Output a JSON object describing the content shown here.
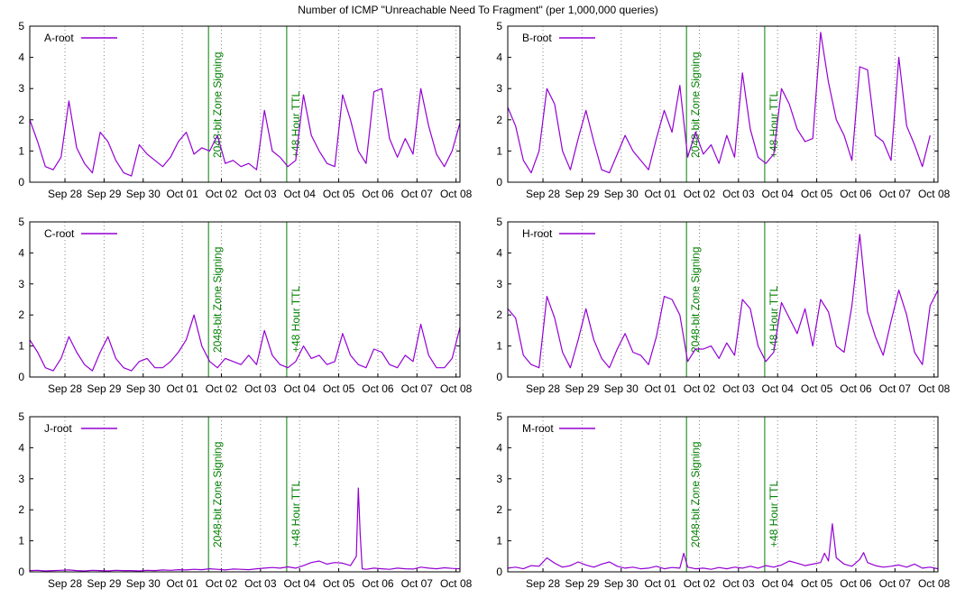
{
  "title": "Number of ICMP \"Unreachable Need To Fragment\" (per 1,000,000 queries)",
  "colors": {
    "series": "#9400d3",
    "event": "#008000",
    "grid": "#888888"
  },
  "chart_data": {
    "type": "line",
    "x_range": [
      27.1,
      38.1
    ],
    "ylim": [
      0,
      5
    ],
    "y_ticks": [
      0,
      1,
      2,
      3,
      4,
      5
    ],
    "x_tick_positions": [
      28,
      29,
      30,
      31,
      32,
      33,
      34,
      35,
      36,
      37,
      38
    ],
    "x_tick_labels": [
      "Sep 28",
      "Sep 29",
      "Sep 30",
      "Oct 01",
      "Oct 02",
      "Oct 03",
      "Oct 04",
      "Oct 05",
      "Oct 06",
      "Oct 07",
      "Oct 08"
    ],
    "events": [
      {
        "label": "2048-bit Zone Signing",
        "x": 31.67
      },
      {
        "label": "+48 Hour TTL",
        "x": 33.67
      }
    ],
    "legend_position": "top-left",
    "panels": [
      {
        "name": "A-root",
        "x": [
          27.1,
          27.3,
          27.5,
          27.7,
          27.9,
          28.1,
          28.3,
          28.5,
          28.7,
          28.9,
          29.1,
          29.3,
          29.5,
          29.7,
          29.9,
          30.1,
          30.3,
          30.5,
          30.7,
          30.9,
          31.1,
          31.3,
          31.5,
          31.7,
          31.9,
          32.1,
          32.3,
          32.5,
          32.7,
          32.9,
          33.1,
          33.3,
          33.5,
          33.7,
          33.9,
          34.1,
          34.3,
          34.5,
          34.7,
          34.9,
          35.1,
          35.3,
          35.5,
          35.7,
          35.9,
          36.1,
          36.3,
          36.5,
          36.7,
          36.9,
          37.1,
          37.3,
          37.5,
          37.7,
          37.9,
          38.1
        ],
        "y": [
          2.0,
          1.3,
          0.5,
          0.4,
          0.8,
          2.6,
          1.1,
          0.6,
          0.3,
          1.6,
          1.3,
          0.7,
          0.3,
          0.2,
          1.2,
          0.9,
          0.7,
          0.5,
          0.8,
          1.3,
          1.6,
          0.9,
          1.1,
          1.0,
          1.5,
          0.6,
          0.7,
          0.5,
          0.6,
          0.4,
          2.3,
          1.0,
          0.8,
          0.5,
          0.7,
          2.8,
          1.5,
          1.0,
          0.6,
          0.5,
          2.8,
          2.0,
          1.0,
          0.6,
          2.9,
          3.0,
          1.4,
          0.8,
          1.4,
          0.9,
          3.0,
          1.8,
          0.9,
          0.5,
          1.0,
          1.9
        ]
      },
      {
        "name": "B-root",
        "x": [
          27.1,
          27.3,
          27.5,
          27.7,
          27.9,
          28.1,
          28.3,
          28.5,
          28.7,
          28.9,
          29.1,
          29.3,
          29.5,
          29.7,
          29.9,
          30.1,
          30.3,
          30.5,
          30.7,
          30.9,
          31.1,
          31.3,
          31.5,
          31.7,
          31.9,
          32.1,
          32.3,
          32.5,
          32.7,
          32.9,
          33.1,
          33.3,
          33.5,
          33.7,
          33.9,
          34.1,
          34.3,
          34.5,
          34.7,
          34.9,
          35.1,
          35.3,
          35.5,
          35.7,
          35.9,
          36.1,
          36.3,
          36.5,
          36.7,
          36.9,
          37.1,
          37.3,
          37.5,
          37.7,
          37.9
        ],
        "y": [
          2.4,
          1.8,
          0.7,
          0.3,
          1.0,
          3.0,
          2.5,
          1.0,
          0.4,
          1.4,
          2.3,
          1.3,
          0.4,
          0.3,
          0.9,
          1.5,
          1.0,
          0.7,
          0.4,
          1.4,
          2.3,
          1.6,
          3.1,
          0.8,
          1.6,
          0.9,
          1.2,
          0.6,
          1.5,
          0.8,
          3.5,
          1.7,
          0.8,
          0.6,
          0.9,
          3.0,
          2.5,
          1.7,
          1.3,
          1.4,
          4.8,
          3.2,
          2.0,
          1.5,
          0.7,
          3.7,
          3.6,
          1.5,
          1.3,
          0.7,
          4.0,
          1.8,
          1.2,
          0.5,
          1.5
        ]
      },
      {
        "name": "C-root",
        "x": [
          27.1,
          27.3,
          27.5,
          27.7,
          27.9,
          28.1,
          28.3,
          28.5,
          28.7,
          28.9,
          29.1,
          29.3,
          29.5,
          29.7,
          29.9,
          30.1,
          30.3,
          30.5,
          30.7,
          30.9,
          31.1,
          31.3,
          31.5,
          31.7,
          31.9,
          32.1,
          32.3,
          32.5,
          32.7,
          32.9,
          33.1,
          33.3,
          33.5,
          33.7,
          33.9,
          34.1,
          34.3,
          34.5,
          34.7,
          34.9,
          35.1,
          35.3,
          35.5,
          35.7,
          35.9,
          36.1,
          36.3,
          36.5,
          36.7,
          36.9,
          37.1,
          37.3,
          37.5,
          37.7,
          37.9,
          38.1
        ],
        "y": [
          1.2,
          0.8,
          0.3,
          0.2,
          0.6,
          1.3,
          0.8,
          0.4,
          0.2,
          0.8,
          1.3,
          0.6,
          0.3,
          0.2,
          0.5,
          0.6,
          0.3,
          0.3,
          0.5,
          0.8,
          1.2,
          2.0,
          1.0,
          0.5,
          0.3,
          0.6,
          0.5,
          0.4,
          0.7,
          0.4,
          1.5,
          0.7,
          0.4,
          0.3,
          0.5,
          1.0,
          0.6,
          0.7,
          0.4,
          0.5,
          1.4,
          0.7,
          0.4,
          0.3,
          0.9,
          0.8,
          0.4,
          0.3,
          0.7,
          0.5,
          1.7,
          0.7,
          0.3,
          0.3,
          0.6,
          1.6
        ]
      },
      {
        "name": "H-root",
        "x": [
          27.1,
          27.3,
          27.5,
          27.7,
          27.9,
          28.1,
          28.3,
          28.5,
          28.7,
          28.9,
          29.1,
          29.3,
          29.5,
          29.7,
          29.9,
          30.1,
          30.3,
          30.5,
          30.7,
          30.9,
          31.1,
          31.3,
          31.5,
          31.7,
          31.9,
          32.1,
          32.3,
          32.5,
          32.7,
          32.9,
          33.1,
          33.3,
          33.5,
          33.7,
          33.9,
          34.1,
          34.3,
          34.5,
          34.7,
          34.9,
          35.1,
          35.3,
          35.5,
          35.7,
          35.9,
          36.1,
          36.3,
          36.5,
          36.7,
          36.9,
          37.1,
          37.3,
          37.5,
          37.7,
          37.9,
          38.1
        ],
        "y": [
          2.2,
          1.9,
          0.7,
          0.4,
          0.3,
          2.6,
          1.9,
          0.8,
          0.3,
          1.2,
          2.2,
          1.2,
          0.6,
          0.3,
          0.9,
          1.4,
          0.8,
          0.7,
          0.4,
          1.3,
          2.6,
          2.5,
          2.0,
          0.5,
          0.9,
          0.9,
          1.0,
          0.6,
          1.1,
          0.7,
          2.5,
          2.2,
          1.0,
          0.5,
          0.8,
          2.4,
          1.9,
          1.4,
          2.2,
          1.0,
          2.5,
          2.1,
          1.0,
          0.8,
          2.3,
          4.6,
          2.1,
          1.3,
          0.7,
          1.8,
          2.8,
          2.0,
          0.8,
          0.4,
          2.3,
          2.8
        ]
      },
      {
        "name": "J-root",
        "x": [
          27.1,
          27.3,
          27.5,
          27.7,
          27.9,
          28.1,
          28.3,
          28.5,
          28.7,
          28.9,
          29.1,
          29.3,
          29.5,
          29.7,
          29.9,
          30.1,
          30.3,
          30.5,
          30.7,
          30.9,
          31.1,
          31.3,
          31.5,
          31.7,
          31.9,
          32.1,
          32.3,
          32.5,
          32.7,
          32.9,
          33.1,
          33.3,
          33.5,
          33.7,
          33.9,
          34.1,
          34.3,
          34.5,
          34.7,
          34.9,
          35.1,
          35.3,
          35.45,
          35.5,
          35.55,
          35.6,
          35.7,
          35.9,
          36.1,
          36.3,
          36.5,
          36.7,
          36.9,
          37.1,
          37.3,
          37.5,
          37.7,
          37.9,
          38.1
        ],
        "y": [
          0.04,
          0.05,
          0.03,
          0.04,
          0.05,
          0.06,
          0.04,
          0.03,
          0.05,
          0.04,
          0.03,
          0.05,
          0.04,
          0.04,
          0.03,
          0.05,
          0.04,
          0.06,
          0.05,
          0.07,
          0.06,
          0.08,
          0.07,
          0.1,
          0.08,
          0.06,
          0.09,
          0.08,
          0.07,
          0.1,
          0.12,
          0.14,
          0.12,
          0.16,
          0.12,
          0.2,
          0.3,
          0.35,
          0.25,
          0.3,
          0.28,
          0.2,
          0.5,
          2.7,
          1.2,
          0.1,
          0.08,
          0.12,
          0.1,
          0.08,
          0.12,
          0.1,
          0.09,
          0.15,
          0.12,
          0.1,
          0.13,
          0.11,
          0.1
        ]
      },
      {
        "name": "M-root",
        "x": [
          27.1,
          27.3,
          27.5,
          27.7,
          27.9,
          28.1,
          28.3,
          28.5,
          28.7,
          28.9,
          29.1,
          29.3,
          29.5,
          29.7,
          29.9,
          30.1,
          30.3,
          30.5,
          30.7,
          30.9,
          31.1,
          31.3,
          31.5,
          31.6,
          31.7,
          31.9,
          32.1,
          32.3,
          32.5,
          32.7,
          32.9,
          33.1,
          33.3,
          33.5,
          33.7,
          33.9,
          34.1,
          34.3,
          34.5,
          34.7,
          34.9,
          35.1,
          35.2,
          35.3,
          35.4,
          35.5,
          35.7,
          35.9,
          36.1,
          36.2,
          36.3,
          36.5,
          36.7,
          36.9,
          37.1,
          37.3,
          37.5,
          37.7,
          37.9,
          38.1
        ],
        "y": [
          0.12,
          0.15,
          0.1,
          0.2,
          0.18,
          0.45,
          0.28,
          0.15,
          0.2,
          0.32,
          0.22,
          0.15,
          0.25,
          0.32,
          0.18,
          0.12,
          0.15,
          0.1,
          0.12,
          0.18,
          0.1,
          0.14,
          0.12,
          0.6,
          0.15,
          0.1,
          0.12,
          0.08,
          0.14,
          0.1,
          0.15,
          0.12,
          0.18,
          0.12,
          0.2,
          0.15,
          0.22,
          0.35,
          0.28,
          0.2,
          0.25,
          0.3,
          0.6,
          0.35,
          1.55,
          0.45,
          0.25,
          0.18,
          0.4,
          0.62,
          0.3,
          0.2,
          0.15,
          0.18,
          0.22,
          0.15,
          0.25,
          0.12,
          0.15,
          0.1
        ]
      }
    ]
  }
}
